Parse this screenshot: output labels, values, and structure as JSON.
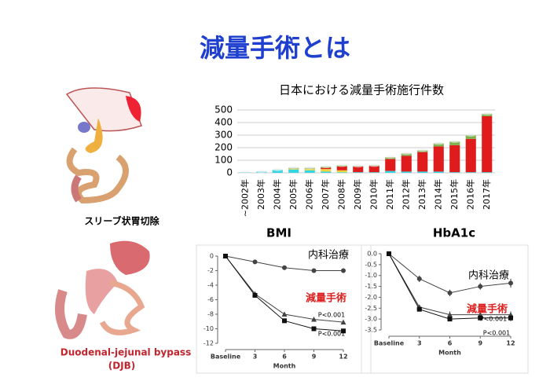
{
  "title": "減量手術とは",
  "figures": [
    {
      "label": "スリーブ状胃切除"
    },
    {
      "label": "Duodenal-jejunal bypass",
      "label2": "(DJB)"
    }
  ],
  "chart_data": [
    {
      "type": "bar",
      "title": "日本における減量手術施行件数",
      "categories": [
        "~2002年",
        "2003年",
        "2004年",
        "2005年",
        "2006年",
        "2007年",
        "2008年",
        "2009年",
        "2010年",
        "2011年",
        "2012年",
        "2013年",
        "2014年",
        "2015年",
        "2016年",
        "2017年"
      ],
      "series": [
        {
          "color": "#33d6e0",
          "values": [
            5,
            10,
            25,
            25,
            20,
            10,
            5,
            5,
            5,
            15,
            10,
            10,
            10,
            5,
            5,
            5
          ]
        },
        {
          "color": "#f2d33a",
          "values": [
            0,
            0,
            0,
            5,
            10,
            20,
            15,
            0,
            0,
            0,
            0,
            0,
            0,
            0,
            0,
            0
          ]
        },
        {
          "color": "#e01b1b",
          "values": [
            0,
            0,
            0,
            0,
            0,
            10,
            30,
            45,
            50,
            95,
            125,
            155,
            200,
            215,
            265,
            445
          ]
        },
        {
          "color": "#7bb04a",
          "values": [
            0,
            0,
            0,
            10,
            10,
            10,
            10,
            5,
            5,
            15,
            20,
            15,
            25,
            30,
            30,
            20
          ]
        }
      ],
      "ylim": [
        0,
        500
      ],
      "yticks": [
        0,
        100,
        200,
        300,
        400,
        500
      ],
      "stacked": true
    },
    {
      "type": "line",
      "title": "BMI",
      "xlabel": "Month",
      "x": [
        0,
        3,
        6,
        9,
        12
      ],
      "xlim": [
        0,
        12
      ],
      "xticks": [
        {
          "value": 0,
          "label": "Baseline"
        },
        3,
        6,
        9,
        12
      ],
      "ylim": [
        -12,
        0
      ],
      "yticks": [
        0,
        -2,
        -4,
        -6,
        -8,
        -10,
        -12
      ],
      "series": [
        {
          "color": "#444",
          "marker": "circle",
          "values": [
            0,
            -0.8,
            -1.6,
            -2,
            -2
          ],
          "errors": [
            0,
            0.3,
            0.3,
            0.3,
            0.3
          ]
        },
        {
          "color": "#444",
          "marker": "triangle",
          "values": [
            0,
            -5.2,
            -8,
            -8.7,
            -9.1
          ],
          "errors": [
            0,
            0.3,
            0.3,
            0.3,
            0.3
          ]
        },
        {
          "color": "#111",
          "marker": "square",
          "values": [
            0,
            -5.4,
            -8.9,
            -10,
            -10.3
          ],
          "errors": [
            0,
            0.3,
            0.3,
            0.3,
            0.3
          ]
        }
      ],
      "annotations": [
        "内科治療",
        "減量手術",
        "P<0.001",
        "P<0.001"
      ]
    },
    {
      "type": "line",
      "title": "HbA1c",
      "xlabel": "Month",
      "x": [
        0,
        3,
        6,
        9,
        12
      ],
      "xlim": [
        0,
        12
      ],
      "xticks": [
        {
          "value": 0,
          "label": "Baseline"
        },
        3,
        6,
        9,
        12
      ],
      "ylim": [
        -3.5,
        0
      ],
      "yticks": [
        {
          "value": 0,
          "label": "0.0"
        },
        -0.5,
        {
          "value": -1,
          "label": "-1.0"
        },
        -1.5,
        {
          "value": -2,
          "label": "-2.0"
        },
        -2.5,
        {
          "value": -3,
          "label": "-3.0"
        },
        -3.5
      ],
      "series": [
        {
          "color": "#444",
          "marker": "circle",
          "values": [
            0,
            -1.15,
            -1.8,
            -1.5,
            -1.35
          ],
          "errors": [
            0,
            0.15,
            0.15,
            0.15,
            0.2
          ]
        },
        {
          "color": "#444",
          "marker": "triangle",
          "values": [
            0,
            -2.45,
            -2.8,
            -2.8,
            -2.8
          ],
          "errors": [
            0,
            0.1,
            0.15,
            0.15,
            0.15
          ]
        },
        {
          "color": "#111",
          "marker": "square",
          "values": [
            0,
            -2.55,
            -3,
            -2.95,
            -2.95
          ],
          "errors": [
            0,
            0.1,
            0.1,
            0.1,
            0.15
          ]
        }
      ],
      "annotations": [
        "内科治療",
        "減量手術",
        "P<0.001",
        "P<0.001"
      ]
    }
  ]
}
